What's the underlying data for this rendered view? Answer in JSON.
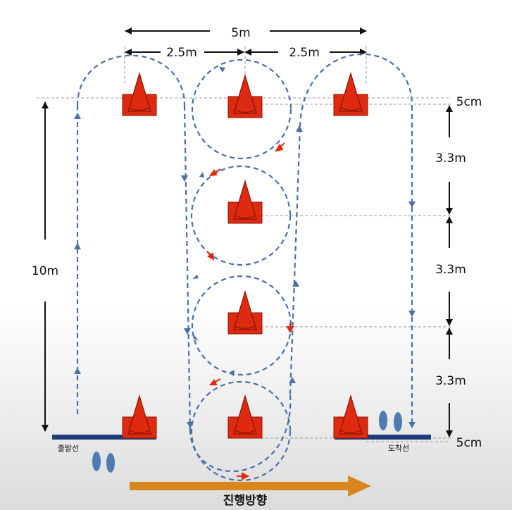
{
  "dimensions": {
    "total_width": "5m",
    "half_width_left": "2.5m",
    "half_width_right": "2.5m",
    "length": "10m",
    "offset_top": "5cm",
    "offset_bottom": "5cm",
    "spacing": [
      "3.3m",
      "3.3m",
      "3.3m"
    ]
  },
  "lines": {
    "start_line": "출발선",
    "finish_line": "도착선"
  },
  "direction": "진행방향",
  "colors": {
    "cone": "#dd2a10",
    "cone_edge": "#8a1405",
    "path": "#4a6fa8",
    "path_arrow_red": "#dd2a10",
    "line_bar": "#1f3b7a",
    "arrow_orange": "#d9861f",
    "footprint": "#4f7bb3"
  },
  "icons": {
    "cone": "traffic-cone-icon",
    "footprint": "footprint-icon",
    "direction_arrow": "arrow-right-icon"
  }
}
